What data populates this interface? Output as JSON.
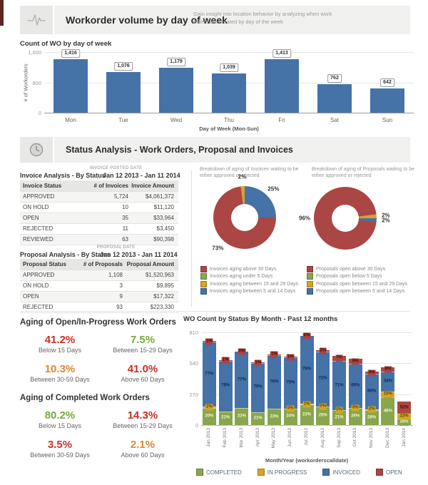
{
  "colors": {
    "blue": "#4572a7",
    "red": "#aa4643",
    "green": "#89a54e",
    "gold": "#d5a428",
    "text_red": "#cc2d25",
    "text_green": "#74aa3e",
    "text_orange": "#e2862c"
  },
  "header_primary": {
    "icon": "pulse-icon",
    "title": "Workorder volume by day of week",
    "description": "Gain insight into location behavior by analyzing when work orders are created by day of the week"
  },
  "header_status": {
    "icon": "clock-icon",
    "title": "Status Analysis - Work Orders, Proposal and Invoices"
  },
  "invoice_analysis": {
    "meta_label": "INVOICE POSTED DATE",
    "title": "Invoice Analysis - By Status",
    "date_range": "Jan 12 2013 - Jan 11 2014",
    "columns": [
      "Invoice Status",
      "# of Invoices",
      "Invoice Amount"
    ],
    "rows": [
      [
        "APPROVED",
        "5,724",
        "$4,061,372"
      ],
      [
        "ON HOLD",
        "10",
        "$11,120"
      ],
      [
        "OPEN",
        "35",
        "$33,964"
      ],
      [
        "REJECTED",
        "11",
        "$3,450"
      ],
      [
        "REVIEWED",
        "63",
        "$90,398"
      ]
    ]
  },
  "proposal_analysis": {
    "meta_label": "PROPOSAL DATE",
    "title": "Proposal Analysis - By Status",
    "date_range": "Jan 12 2013 - Jan 11 2014",
    "columns": [
      "Proposal Status",
      "# of Proposals",
      "Proposal Amount"
    ],
    "rows": [
      [
        "APPROVED",
        "1,108",
        "$1,520,963"
      ],
      [
        "ON HOLD",
        "3",
        "$9,895"
      ],
      [
        "OPEN",
        "9",
        "$17,322"
      ],
      [
        "REJECTED",
        "93",
        "$223,330"
      ]
    ]
  },
  "invoice_legend": [
    {
      "label": "Invoices aging above 30 Days",
      "color": "#aa4643"
    },
    {
      "label": "Invoices aging under 5 Days",
      "color": "#89a54e"
    },
    {
      "label": "Invoices aging between 15 and 29 Days",
      "color": "#d5a428"
    },
    {
      "label": "Invoices aging between 5 and 14 Days",
      "color": "#4572a7"
    }
  ],
  "proposal_legend": [
    {
      "label": "Proposals open above 30 Days",
      "color": "#aa4643"
    },
    {
      "label": "Proposals open below 5 Days",
      "color": "#89a54e"
    },
    {
      "label": "Proposals open between 15 and 29 Days",
      "color": "#d5a428"
    },
    {
      "label": "Proposals open between 5 and 14 Days",
      "color": "#4572a7"
    }
  ],
  "aging_open": {
    "title": "Aging of Open/In-Progress Work Orders",
    "stats": [
      {
        "value": "41.2%",
        "color": "text_red",
        "label": "Below 15 Days"
      },
      {
        "value": "7.5%",
        "color": "text_green",
        "label": "Between 15-29 Days"
      },
      {
        "value": "10.3%",
        "color": "text_orange",
        "label": "Between 30-59 Days"
      },
      {
        "value": "41.0%",
        "color": "text_red",
        "label": "Above 60 Days"
      }
    ]
  },
  "aging_completed": {
    "title": "Aging of Completed Work Orders",
    "stats": [
      {
        "value": "80.2%",
        "color": "text_green",
        "label": "Below 15 Days"
      },
      {
        "value": "14.3%",
        "color": "text_red",
        "label": "Between 15-29 Days"
      },
      {
        "value": "3.5%",
        "color": "text_red",
        "label": "Between 30-59 Days"
      },
      {
        "value": "2.1%",
        "color": "text_orange",
        "label": "Above 60 Days"
      }
    ]
  },
  "chart_data": [
    {
      "id": "wo_by_day",
      "type": "bar",
      "title": "Count of WO by day of week",
      "xlabel": "Day of Week (Mon-Sun)",
      "ylabel": "# of Workorders",
      "ylim": [
        0,
        1600
      ],
      "yticks": [
        {
          "value": 1600,
          "label": "1,600"
        },
        {
          "value": 800,
          "label": "800"
        },
        {
          "value": 0,
          "label": "0"
        }
      ],
      "categories": [
        "Mon",
        "Tue",
        "Wed",
        "Thu",
        "Fri",
        "Sat",
        "Sun"
      ],
      "values": [
        1416,
        1076,
        1179,
        1039,
        1413,
        762,
        642
      ],
      "value_labels": [
        "1,416",
        "1,076",
        "1,179",
        "1,039",
        "1,413",
        "762",
        "642"
      ],
      "bar_color": "#4572a7"
    },
    {
      "id": "invoice_aging_donut",
      "type": "pie",
      "title": "Breakdown of aging of Invoices waiting to be either approved or rejected",
      "rotation": 0,
      "slices": [
        {
          "name": "Invoices aging between 5 and 14 Days",
          "value": 25,
          "label": "25%",
          "color": "#4572a7"
        },
        {
          "name": "Invoices aging above 30 Days",
          "value": 73,
          "label": "73%",
          "color": "#aa4643"
        },
        {
          "name": "Invoices aging between 15 and 29 Days",
          "value": 2,
          "label": "2%",
          "color": "#d5a428"
        },
        {
          "name": "Invoices aging under 5 Days",
          "value": 0,
          "label": "",
          "color": "#89a54e"
        }
      ]
    },
    {
      "id": "proposal_aging_donut",
      "type": "pie",
      "title": "Breakdown of aging of Proposals waiting to be either approved or rejected",
      "rotation": 97,
      "slices": [
        {
          "name": "Proposals open above 30 Days",
          "value": 96,
          "label": "96%",
          "color": "#aa4643"
        },
        {
          "name": "Proposals open between 15 and 29 Days",
          "value": 2,
          "label": "2%",
          "color": "#d5a428"
        },
        {
          "name": "Proposals open between 5 and 14 Days",
          "value": 2,
          "label": "2%",
          "color": "#4572a7"
        },
        {
          "name": "Proposals open below 5 Days",
          "value": 0,
          "label": "",
          "color": "#89a54e"
        }
      ]
    },
    {
      "id": "wo_by_month",
      "type": "bar",
      "stacked": true,
      "title": "WO Count by Status By Month - Past 12 months",
      "xlabel": "Month/Year (workorderscalldate)",
      "ylim": [
        0,
        810
      ],
      "yticks": [
        {
          "value": 810,
          "label": "810"
        },
        {
          "value": 540,
          "label": "540"
        },
        {
          "value": 270,
          "label": "270"
        },
        {
          "value": 0,
          "label": "0"
        }
      ],
      "categories": [
        "Jan 2013",
        "Feb 2013",
        "Mar 2013",
        "Apr 2013",
        "May 2013",
        "Jun 2013",
        "Jul 2013",
        "Aug 2013",
        "Sep 2013",
        "Oct 2013",
        "Nov 2013",
        "Dec 2013",
        "Jan 2014"
      ],
      "totals": [
        735,
        567,
        642,
        542,
        617,
        598,
        779,
        660,
        611,
        580,
        467,
        505,
        206
      ],
      "series": [
        {
          "name": "COMPLETED",
          "color": "#89a54e",
          "label_color": "#f4f7cb",
          "pct": [
            20,
            21,
            23,
            21,
            23,
            24,
            23,
            25,
            21,
            26,
            28,
            48,
            26
          ],
          "labels": [
            "20%",
            "21%",
            "23%",
            "21%",
            "23%",
            "24%",
            "23%",
            "25%",
            "21%",
            "26%",
            "28%",
            "48%",
            "26%"
          ]
        },
        {
          "name": "IN PROGRESS",
          "color": "#d5a428",
          "label_color": "#5e4800",
          "pct": [
            2,
            0,
            0,
            0,
            0,
            0,
            1,
            0,
            0,
            0,
            2,
            10,
            22
          ],
          "labels": [
            "2%",
            "",
            "",
            "",
            "",
            "0%",
            "1%",
            "0%",
            "0%",
            "0%",
            "2%",
            "10%",
            "22%"
          ]
        },
        {
          "name": "INVOICED",
          "color": "#4572a7",
          "label_color": "#112a52",
          "pct": [
            77,
            78,
            77,
            79,
            76,
            75,
            76,
            72,
            71,
            66,
            66,
            34,
            0
          ],
          "labels": [
            "77%",
            "78%",
            "77%",
            "79%",
            "76%",
            "75%",
            "76%",
            "72%",
            "71%",
            "66%",
            "66%",
            "34%",
            ""
          ]
        },
        {
          "name": "OPEN",
          "color": "#aa4643",
          "label_color": "#3f0d0d",
          "pct": [
            1,
            1,
            0,
            1,
            1,
            1,
            0,
            2,
            7,
            8,
            4,
            8,
            52
          ],
          "labels": [
            "1%",
            "1%",
            "0%",
            "1%",
            "1%",
            "1%",
            "0%",
            "2%",
            "7%",
            "8%",
            "4%",
            "8%",
            "52%"
          ]
        }
      ],
      "legend": [
        {
          "label": "COMPLETED",
          "color": "#89a54e"
        },
        {
          "label": "IN PROGRESS",
          "color": "#d5a428"
        },
        {
          "label": "INVOICED",
          "color": "#4572a7"
        },
        {
          "label": "OPEN",
          "color": "#aa4643"
        }
      ]
    }
  ]
}
